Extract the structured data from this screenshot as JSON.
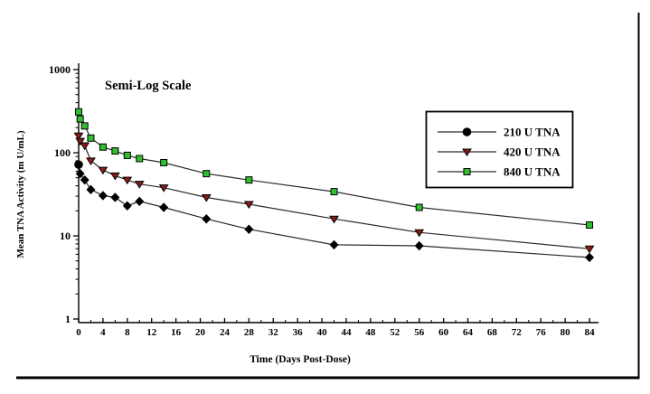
{
  "figure": {
    "background": "#ffffff",
    "border_color": "#000000"
  },
  "chart_data": {
    "type": "line",
    "title": "Semi-Log Scale",
    "xlabel": "Time (Days Post-Dose)",
    "ylabel": "Mean TNA Activity (m U/mL)",
    "y_scale": "log10",
    "ylim": [
      1,
      1000
    ],
    "y_major_ticks": [
      1000,
      100,
      10,
      1
    ],
    "y_minor_decades": [
      1,
      10,
      100
    ],
    "xlim": [
      0,
      85.5
    ],
    "x_major_ticks": [
      0,
      4,
      8,
      12,
      16,
      20,
      24,
      28,
      32,
      36,
      40,
      44,
      48,
      52,
      56,
      60,
      64,
      68,
      72,
      76,
      80,
      84
    ],
    "x_minor_step": 2,
    "grid": "off",
    "legend_position": "upper-right",
    "x_days": [
      0,
      0.25,
      1,
      2,
      4,
      6,
      8,
      10,
      14,
      21,
      28,
      42,
      56,
      84
    ],
    "series": [
      {
        "name": "210 U TNA",
        "marker": "diamond-icon",
        "legend_marker": "circle-icon",
        "color": "#000000",
        "line_color": "#2b2b2b",
        "values": [
          72,
          56,
          47,
          36,
          30.5,
          29,
          23,
          26,
          22,
          16,
          12,
          7.8,
          7.6,
          5.5
        ]
      },
      {
        "name": "420 U TNA",
        "marker": "triangle-down-icon",
        "legend_marker": "triangle-down-icon",
        "color": "#8b1a1a",
        "line_color": "#2b2b2b",
        "values": [
          160,
          138,
          122,
          80,
          62,
          53,
          47,
          42,
          38,
          29,
          24,
          16,
          11,
          7
        ]
      },
      {
        "name": "840 U TNA",
        "marker": "square-icon",
        "legend_marker": "square-icon",
        "color": "#2fbf2f",
        "line_color": "#2b2b2b",
        "values": [
          310,
          255,
          210,
          150,
          117,
          105,
          93,
          85,
          76,
          56,
          47,
          34,
          22,
          13.5
        ]
      }
    ]
  }
}
